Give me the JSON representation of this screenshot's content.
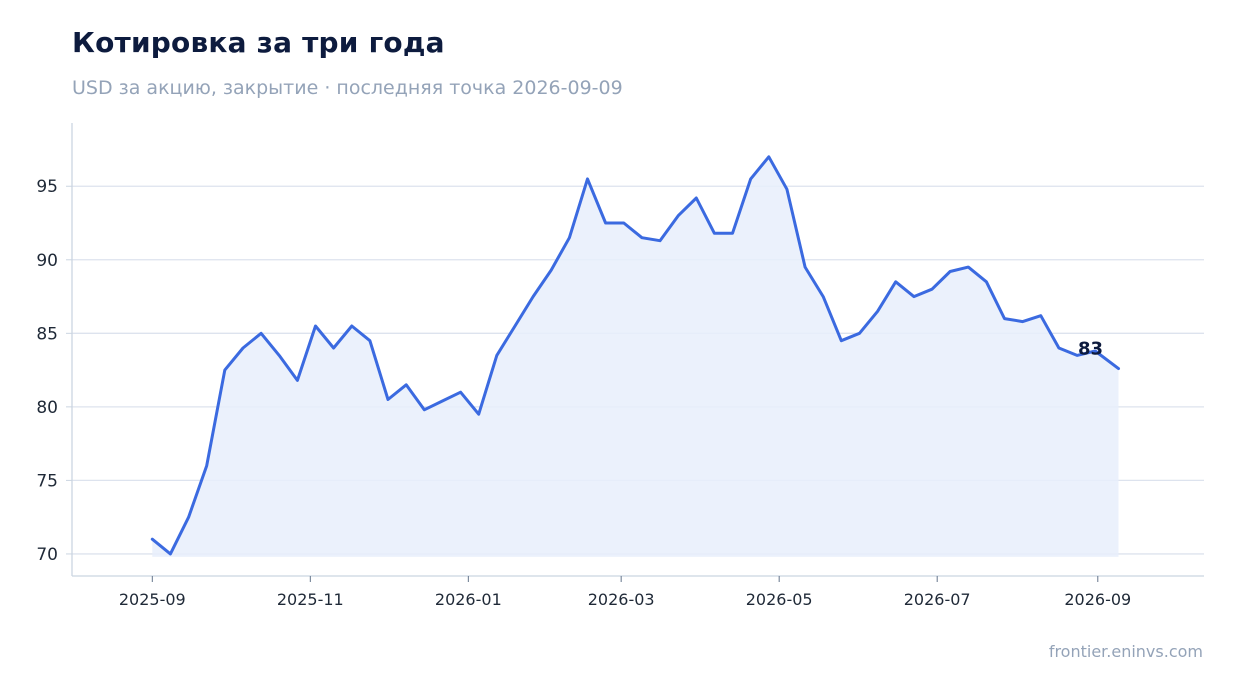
{
  "title": "Котировка за три года",
  "subtitle": "USD за акцию, закрытие · последняя точка 2026-09-09",
  "source": "frontier.eninvs.com",
  "colors": {
    "line": "#3b6ae0",
    "fill": "#e8eefc",
    "grid": "#dde3ee",
    "axis": "#cbd5e1"
  },
  "chart_data": {
    "type": "line",
    "title": "Котировка за три года",
    "subtitle": "USD за акцию, закрытие · последняя точка 2026-09-09",
    "xlabel": "",
    "ylabel": "",
    "ylim": [
      68.5,
      99.3
    ],
    "xlim": [
      "2025-08-01",
      "2026-10-12"
    ],
    "yticks": [
      70,
      75,
      80,
      85,
      90,
      95
    ],
    "xticks": [
      "2025-09",
      "2025-11",
      "2026-01",
      "2026-03",
      "2026-05",
      "2026-07",
      "2026-09"
    ],
    "grid": "horizontal",
    "last_label": "83",
    "series": [
      {
        "x": [
          "2025-09-01",
          "2025-09-08",
          "2025-09-15",
          "2025-09-22",
          "2025-09-29",
          "2025-10-06",
          "2025-10-13",
          "2025-10-20",
          "2025-10-27",
          "2025-11-03",
          "2025-11-10",
          "2025-11-17",
          "2025-11-24",
          "2025-12-01",
          "2025-12-08",
          "2025-12-15",
          "2025-12-22",
          "2025-12-29",
          "2026-01-05",
          "2026-01-12",
          "2026-01-19",
          "2026-01-26",
          "2026-02-02",
          "2026-02-09",
          "2026-02-16",
          "2026-02-23",
          "2026-03-02",
          "2026-03-09",
          "2026-03-16",
          "2026-03-23",
          "2026-03-30",
          "2026-04-06",
          "2026-04-13",
          "2026-04-20",
          "2026-04-27",
          "2026-05-04",
          "2026-05-11",
          "2026-05-18",
          "2026-05-25",
          "2026-06-01",
          "2026-06-08",
          "2026-06-15",
          "2026-06-22",
          "2026-06-29",
          "2026-07-06",
          "2026-07-13",
          "2026-07-20",
          "2026-07-27",
          "2026-08-03",
          "2026-08-10",
          "2026-08-17",
          "2026-08-24",
          "2026-08-31",
          "2026-09-09"
        ],
        "values": [
          71.0,
          70.0,
          72.5,
          76.0,
          82.5,
          84.0,
          85.0,
          83.5,
          81.8,
          85.5,
          84.0,
          85.5,
          84.5,
          80.5,
          81.5,
          79.8,
          80.4,
          81.0,
          79.5,
          83.5,
          85.5,
          87.5,
          89.3,
          91.5,
          95.5,
          92.5,
          92.5,
          91.5,
          91.3,
          93.0,
          94.2,
          91.8,
          91.8,
          95.5,
          97.0,
          94.8,
          89.5,
          87.5,
          84.5,
          85.0,
          86.5,
          88.5,
          87.5,
          88.0,
          89.2,
          89.5,
          88.5,
          86.0,
          85.8,
          86.2,
          84.0,
          83.5,
          83.8,
          82.6
        ]
      }
    ]
  }
}
